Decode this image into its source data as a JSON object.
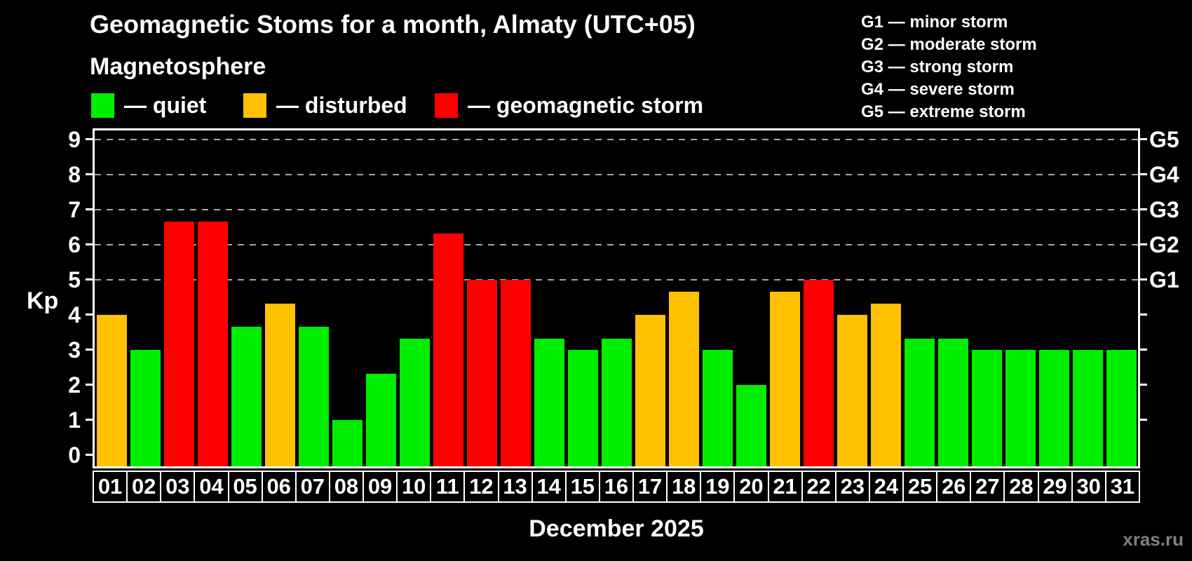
{
  "header": {
    "title": "Geomagnetic Stoms for a month, Almaty (UTC+05)",
    "subtitle": "Magnetosphere"
  },
  "status_legend": [
    {
      "id": "quiet",
      "label": "— quiet",
      "color": "#00ee00"
    },
    {
      "id": "disturbed",
      "label": "— disturbed",
      "color": "#ffc100"
    },
    {
      "id": "storm",
      "label": "— geomagnetic storm",
      "color": "#ff0000"
    }
  ],
  "g_scale_legend": [
    "G1 — minor storm",
    "G2 — moderate storm",
    "G3 — strong storm",
    "G4 — severe storm",
    "G5 — extreme storm"
  ],
  "chart_data": {
    "type": "bar",
    "title": "Geomagnetic Stoms for a month, Almaty (UTC+05)",
    "xlabel": "December 2025",
    "ylabel": "Kp",
    "ylim": [
      0,
      9.4
    ],
    "y_ticks": [
      0,
      1,
      2,
      3,
      4,
      5,
      6,
      7,
      8,
      9
    ],
    "gridlines_at_kp": [
      5,
      6,
      7,
      8,
      9
    ],
    "grid_style": "dashed",
    "legend_position": "top-left",
    "right_axis": [
      {
        "kp": 5,
        "label": "G1"
      },
      {
        "kp": 6,
        "label": "G2"
      },
      {
        "kp": 7,
        "label": "G3"
      },
      {
        "kp": 8,
        "label": "G4"
      },
      {
        "kp": 9,
        "label": "G5"
      }
    ],
    "categories": [
      "01",
      "02",
      "03",
      "04",
      "05",
      "06",
      "07",
      "08",
      "09",
      "10",
      "11",
      "12",
      "13",
      "14",
      "15",
      "16",
      "17",
      "18",
      "19",
      "20",
      "21",
      "22",
      "23",
      "24",
      "25",
      "26",
      "27",
      "28",
      "29",
      "30",
      "31"
    ],
    "values": [
      4,
      3,
      6.67,
      6.67,
      3.67,
      4.33,
      3.67,
      1,
      2.33,
      3.33,
      6.33,
      5,
      5,
      3.33,
      3,
      3.33,
      4,
      4.67,
      3,
      2,
      4.67,
      5,
      4,
      4.33,
      3.33,
      3.33,
      3,
      3,
      3,
      3,
      3
    ],
    "statuses": [
      "disturbed",
      "quiet",
      "storm",
      "storm",
      "quiet",
      "disturbed",
      "quiet",
      "quiet",
      "quiet",
      "quiet",
      "storm",
      "storm",
      "storm",
      "quiet",
      "quiet",
      "quiet",
      "disturbed",
      "disturbed",
      "quiet",
      "quiet",
      "disturbed",
      "storm",
      "disturbed",
      "disturbed",
      "quiet",
      "quiet",
      "quiet",
      "quiet",
      "quiet",
      "quiet",
      "quiet"
    ],
    "colors": {
      "quiet": "#00ee00",
      "disturbed": "#ffc100",
      "storm": "#ff0000"
    }
  },
  "footer": {
    "watermark": "xras.ru"
  }
}
